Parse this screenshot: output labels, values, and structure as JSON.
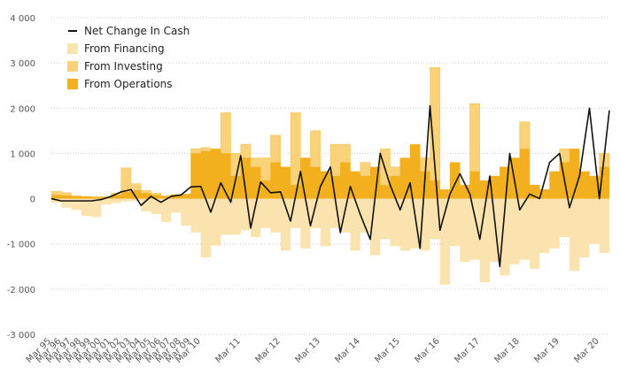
{
  "chart_data": {
    "type": "area",
    "title": "",
    "xlabel": "",
    "ylabel": "",
    "ylim": [
      -3000,
      4000
    ],
    "yticks": [
      4000,
      3000,
      2000,
      1000,
      0,
      -1000,
      -2000,
      -3000
    ],
    "ytick_labels": [
      "4 000",
      "3 000",
      "2 000",
      "1 000",
      "0",
      "-1 000",
      "-2 000",
      "-3 000"
    ],
    "grid": "horizontal dotted",
    "legend_position": "top-left",
    "xtick_labels": [
      "Mar 95",
      "Mar 96",
      "Mar 97",
      "Mar 98",
      "Mar 99",
      "Mar 00",
      "Mar 01",
      "Mar 02",
      "Mar 03",
      "Mar 04",
      "Mar 05",
      "Mar 06",
      "Mar 07",
      "Mar 08",
      "Mar 09",
      "Mar 10",
      "Mar 11",
      "Mar 12",
      "Mar 13",
      "Mar 14",
      "Mar 15",
      "Mar 16",
      "Mar 17",
      "Mar 18",
      "Mar 19",
      "Mar 20"
    ],
    "legend": [
      {
        "name": "Net Change In Cash",
        "color": "#111111",
        "kind": "line"
      },
      {
        "name": "From Financing",
        "color": "#fbe3b0",
        "kind": "area"
      },
      {
        "name": "From Investing",
        "color": "#f9d27a",
        "kind": "area"
      },
      {
        "name": "From Operations",
        "color": "#f2b01e",
        "kind": "area"
      }
    ],
    "x": [
      "Mar 95",
      "Mar 96",
      "Mar 97",
      "Mar 98",
      "Mar 99",
      "Mar 00",
      "Mar 01",
      "Mar 02",
      "Mar 03",
      "Mar 04",
      "Mar 05",
      "Mar 06",
      "Mar 07",
      "Mar 08",
      "Mar 09",
      "Mar 10",
      "Jun 10",
      "Sep 10",
      "Dec 10",
      "Mar 11",
      "Jun 11",
      "Sep 11",
      "Dec 11",
      "Mar 12",
      "Jun 12",
      "Sep 12",
      "Dec 12",
      "Mar 13",
      "Jun 13",
      "Sep 13",
      "Dec 13",
      "Mar 14",
      "Jun 14",
      "Sep 14",
      "Dec 14",
      "Mar 15",
      "Jun 15",
      "Sep 15",
      "Dec 15",
      "Mar 16",
      "Jun 16",
      "Sep 16",
      "Dec 16",
      "Mar 17",
      "Jun 17",
      "Sep 17",
      "Dec 17",
      "Mar 18",
      "Jun 18",
      "Sep 18",
      "Dec 18",
      "Mar 19",
      "Jun 19",
      "Sep 19",
      "Dec 19",
      "Mar 20",
      "Jun 20"
    ],
    "series": [
      {
        "name": "From Operations",
        "values": [
          80,
          70,
          60,
          50,
          40,
          40,
          80,
          150,
          180,
          120,
          80,
          60,
          90,
          100,
          1000,
          1050,
          1100,
          1000,
          500,
          900,
          700,
          400,
          800,
          700,
          300,
          900,
          700,
          600,
          500,
          800,
          600,
          500,
          700,
          300,
          500,
          900,
          1200,
          600,
          400,
          200,
          800,
          300,
          600,
          400,
          500,
          700,
          900,
          1100,
          300,
          200,
          600,
          800,
          1100,
          600,
          500,
          700,
          300
        ]
      },
      {
        "name": "From Investing",
        "values": [
          80,
          60,
          -20,
          -200,
          -30,
          -20,
          40,
          530,
          150,
          60,
          40,
          -20,
          -60,
          -50,
          100,
          80,
          -40,
          900,
          500,
          300,
          200,
          500,
          600,
          -300,
          1600,
          -400,
          800,
          -100,
          700,
          400,
          -200,
          300,
          -300,
          800,
          200,
          -500,
          -600,
          300,
          2500,
          -700,
          -100,
          -300,
          1500,
          -800,
          -100,
          -500,
          -200,
          600,
          -300,
          -100,
          -200,
          300,
          -600,
          -100,
          -200,
          300,
          400
        ]
      },
      {
        "name": "From Financing",
        "values": [
          -90,
          -200,
          -230,
          -180,
          -380,
          -110,
          -100,
          -60,
          -50,
          -280,
          -340,
          -500,
          -250,
          -550,
          -750,
          -1300,
          -1000,
          -800,
          -800,
          -700,
          -850,
          -650,
          -750,
          -850,
          -650,
          -700,
          -650,
          -950,
          -650,
          -750,
          -950,
          -750,
          -950,
          -900,
          -1050,
          -650,
          -500,
          -1150,
          -900,
          -1200,
          -950,
          -1100,
          -1350,
          -1050,
          -1300,
          -1200,
          -1250,
          -1350,
          -1250,
          -1100,
          -900,
          -850,
          -1000,
          -1200,
          -800,
          -1200,
          -1400
        ]
      },
      {
        "name": "Net Change In Cash",
        "values": [
          0,
          -50,
          -50,
          -50,
          -50,
          -20,
          50,
          150,
          200,
          -150,
          50,
          -80,
          50,
          80,
          260,
          270,
          -300,
          350,
          -80,
          950,
          -650,
          370,
          130,
          150,
          -500,
          600,
          -600,
          270,
          700,
          -750,
          270,
          -350,
          -900,
          1000,
          300,
          -250,
          350,
          -1100,
          2050,
          -700,
          100,
          550,
          100,
          -900,
          500,
          -1500,
          1000,
          -250,
          100,
          0,
          800,
          1000,
          -200,
          500,
          2000,
          0,
          1950
        ]
      }
    ]
  }
}
